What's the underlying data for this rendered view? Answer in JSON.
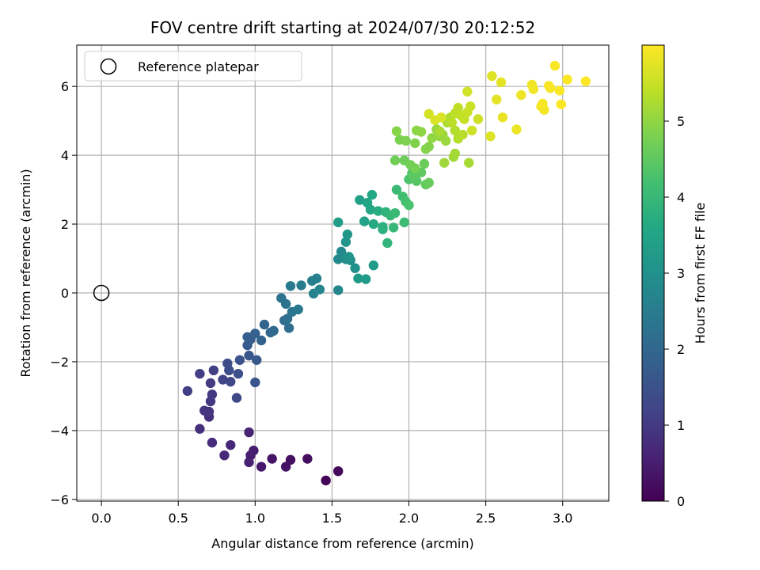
{
  "chart_data": {
    "type": "scatter",
    "title": "FOV centre drift starting at 2024/07/30 20:12:52",
    "xlabel": "Angular distance from reference (arcmin)",
    "ylabel": "Rotation from reference (arcmin)",
    "xlim": [
      -0.16,
      3.3
    ],
    "ylim": [
      -6.05,
      7.2
    ],
    "xticks": [
      0.0,
      0.5,
      1.0,
      1.5,
      2.0,
      2.5,
      3.0
    ],
    "xtick_labels": [
      "0.0",
      "0.5",
      "1.0",
      "1.5",
      "2.0",
      "2.5",
      "3.0"
    ],
    "yticks": [
      -6,
      -4,
      -2,
      0,
      2,
      4,
      6
    ],
    "ytick_labels": [
      "−6",
      "−4",
      "−2",
      "0",
      "2",
      "4",
      "6"
    ],
    "grid": true,
    "colormap": "viridis",
    "colorbar": {
      "label": "Hours from first FF file",
      "range": [
        0,
        6.0
      ],
      "ticks": [
        0,
        1,
        2,
        3,
        4,
        5
      ],
      "tick_labels": [
        "0",
        "1",
        "2",
        "3",
        "4",
        "5"
      ]
    },
    "legend": {
      "position": "top-left",
      "entries": [
        {
          "label": "Reference platepar",
          "marker": "open-circle"
        }
      ]
    },
    "reference_point": {
      "x": 0.0,
      "y": 0.0
    },
    "points": [
      {
        "x": 1.46,
        "y": -5.45,
        "t": 0.05
      },
      {
        "x": 1.54,
        "y": -5.18,
        "t": 0.1
      },
      {
        "x": 1.34,
        "y": -4.82,
        "t": 0.2
      },
      {
        "x": 1.23,
        "y": -4.85,
        "t": 0.25
      },
      {
        "x": 1.2,
        "y": -5.05,
        "t": 0.3
      },
      {
        "x": 1.11,
        "y": -4.82,
        "t": 0.35
      },
      {
        "x": 1.04,
        "y": -5.05,
        "t": 0.4
      },
      {
        "x": 0.99,
        "y": -4.58,
        "t": 0.45
      },
      {
        "x": 0.97,
        "y": -4.72,
        "t": 0.5
      },
      {
        "x": 0.96,
        "y": -4.92,
        "t": 0.55
      },
      {
        "x": 0.96,
        "y": -4.05,
        "t": 0.6
      },
      {
        "x": 0.84,
        "y": -4.42,
        "t": 0.65
      },
      {
        "x": 0.8,
        "y": -4.72,
        "t": 0.7
      },
      {
        "x": 0.72,
        "y": -4.35,
        "t": 0.75
      },
      {
        "x": 0.64,
        "y": -3.95,
        "t": 0.8
      },
      {
        "x": 0.7,
        "y": -3.6,
        "t": 0.85
      },
      {
        "x": 0.7,
        "y": -3.45,
        "t": 0.9
      },
      {
        "x": 0.67,
        "y": -3.42,
        "t": 0.95
      },
      {
        "x": 0.71,
        "y": -3.15,
        "t": 1.0
      },
      {
        "x": 0.72,
        "y": -2.95,
        "t": 1.02
      },
      {
        "x": 0.71,
        "y": -2.62,
        "t": 1.05
      },
      {
        "x": 0.56,
        "y": -2.85,
        "t": 1.08
      },
      {
        "x": 0.64,
        "y": -2.35,
        "t": 1.1
      },
      {
        "x": 0.73,
        "y": -2.25,
        "t": 1.15
      },
      {
        "x": 0.79,
        "y": -2.52,
        "t": 1.2
      },
      {
        "x": 0.84,
        "y": -2.58,
        "t": 1.25
      },
      {
        "x": 0.88,
        "y": -3.05,
        "t": 1.3
      },
      {
        "x": 0.82,
        "y": -2.05,
        "t": 1.35
      },
      {
        "x": 0.83,
        "y": -2.25,
        "t": 1.4
      },
      {
        "x": 0.89,
        "y": -2.35,
        "t": 1.45
      },
      {
        "x": 0.9,
        "y": -1.95,
        "t": 1.5
      },
      {
        "x": 1.0,
        "y": -2.6,
        "t": 1.55
      },
      {
        "x": 0.96,
        "y": -1.82,
        "t": 1.6
      },
      {
        "x": 1.01,
        "y": -1.95,
        "t": 1.65
      },
      {
        "x": 0.95,
        "y": -1.52,
        "t": 1.7
      },
      {
        "x": 0.97,
        "y": -1.35,
        "t": 1.75
      },
      {
        "x": 0.95,
        "y": -1.28,
        "t": 1.8
      },
      {
        "x": 1.0,
        "y": -1.18,
        "t": 1.85
      },
      {
        "x": 1.04,
        "y": -1.38,
        "t": 1.9
      },
      {
        "x": 1.06,
        "y": -0.92,
        "t": 1.95
      },
      {
        "x": 1.1,
        "y": -1.15,
        "t": 2.0
      },
      {
        "x": 1.12,
        "y": -1.1,
        "t": 2.05
      },
      {
        "x": 1.19,
        "y": -0.8,
        "t": 2.1
      },
      {
        "x": 1.22,
        "y": -1.02,
        "t": 2.15
      },
      {
        "x": 1.21,
        "y": -0.75,
        "t": 2.2
      },
      {
        "x": 1.2,
        "y": -0.32,
        "t": 2.25
      },
      {
        "x": 1.17,
        "y": -0.15,
        "t": 2.3
      },
      {
        "x": 1.24,
        "y": -0.55,
        "t": 2.35
      },
      {
        "x": 1.28,
        "y": -0.48,
        "t": 2.4
      },
      {
        "x": 1.23,
        "y": 0.2,
        "t": 2.45
      },
      {
        "x": 1.3,
        "y": 0.22,
        "t": 2.5
      },
      {
        "x": 1.37,
        "y": 0.35,
        "t": 2.55
      },
      {
        "x": 1.4,
        "y": 0.42,
        "t": 2.6
      },
      {
        "x": 1.38,
        "y": -0.02,
        "t": 2.65
      },
      {
        "x": 1.42,
        "y": 0.1,
        "t": 2.7
      },
      {
        "x": 1.54,
        "y": 0.08,
        "t": 2.75
      },
      {
        "x": 1.54,
        "y": 0.98,
        "t": 2.8
      },
      {
        "x": 1.56,
        "y": 1.2,
        "t": 2.85
      },
      {
        "x": 1.59,
        "y": 0.98,
        "t": 2.9
      },
      {
        "x": 1.62,
        "y": 0.95,
        "t": 2.95
      },
      {
        "x": 1.65,
        "y": 0.72,
        "t": 3.0
      },
      {
        "x": 1.61,
        "y": 1.05,
        "t": 3.05
      },
      {
        "x": 1.59,
        "y": 1.48,
        "t": 3.1
      },
      {
        "x": 1.6,
        "y": 1.7,
        "t": 3.15
      },
      {
        "x": 1.67,
        "y": 0.42,
        "t": 3.2
      },
      {
        "x": 1.72,
        "y": 0.4,
        "t": 3.25
      },
      {
        "x": 1.77,
        "y": 0.8,
        "t": 3.3
      },
      {
        "x": 1.54,
        "y": 2.05,
        "t": 3.35
      },
      {
        "x": 1.68,
        "y": 2.7,
        "t": 3.4
      },
      {
        "x": 1.71,
        "y": 2.08,
        "t": 3.45
      },
      {
        "x": 1.73,
        "y": 2.62,
        "t": 3.5
      },
      {
        "x": 1.75,
        "y": 2.42,
        "t": 3.55
      },
      {
        "x": 1.76,
        "y": 2.85,
        "t": 3.6
      },
      {
        "x": 1.77,
        "y": 2.0,
        "t": 3.65
      },
      {
        "x": 1.8,
        "y": 2.38,
        "t": 3.7
      },
      {
        "x": 1.83,
        "y": 1.85,
        "t": 3.75
      },
      {
        "x": 1.83,
        "y": 1.92,
        "t": 3.8
      },
      {
        "x": 1.85,
        "y": 2.35,
        "t": 3.85
      },
      {
        "x": 1.86,
        "y": 1.45,
        "t": 3.9
      },
      {
        "x": 1.88,
        "y": 2.25,
        "t": 3.95
      },
      {
        "x": 1.9,
        "y": 1.9,
        "t": 4.0
      },
      {
        "x": 1.91,
        "y": 2.32,
        "t": 4.02
      },
      {
        "x": 1.92,
        "y": 3.0,
        "t": 4.05
      },
      {
        "x": 1.97,
        "y": 2.05,
        "t": 4.1
      },
      {
        "x": 1.96,
        "y": 2.8,
        "t": 4.15
      },
      {
        "x": 1.98,
        "y": 2.65,
        "t": 4.2
      },
      {
        "x": 2.0,
        "y": 2.55,
        "t": 4.25
      },
      {
        "x": 2.0,
        "y": 3.3,
        "t": 4.3
      },
      {
        "x": 2.02,
        "y": 3.48,
        "t": 4.35
      },
      {
        "x": 2.05,
        "y": 3.25,
        "t": 4.4
      },
      {
        "x": 2.03,
        "y": 3.4,
        "t": 4.45
      },
      {
        "x": 2.08,
        "y": 3.5,
        "t": 4.5
      },
      {
        "x": 2.11,
        "y": 3.15,
        "t": 4.55
      },
      {
        "x": 2.13,
        "y": 3.2,
        "t": 4.6
      },
      {
        "x": 2.1,
        "y": 3.75,
        "t": 4.62
      },
      {
        "x": 1.97,
        "y": 3.85,
        "t": 4.65
      },
      {
        "x": 1.91,
        "y": 3.85,
        "t": 4.7
      },
      {
        "x": 2.01,
        "y": 3.72,
        "t": 4.72
      },
      {
        "x": 2.04,
        "y": 3.62,
        "t": 4.75
      },
      {
        "x": 1.94,
        "y": 4.45,
        "t": 4.8
      },
      {
        "x": 1.98,
        "y": 4.42,
        "t": 4.82
      },
      {
        "x": 2.04,
        "y": 4.35,
        "t": 4.85
      },
      {
        "x": 2.11,
        "y": 4.18,
        "t": 4.88
      },
      {
        "x": 2.13,
        "y": 4.25,
        "t": 4.9
      },
      {
        "x": 1.92,
        "y": 4.7,
        "t": 4.92
      },
      {
        "x": 2.05,
        "y": 4.72,
        "t": 4.95
      },
      {
        "x": 2.08,
        "y": 4.68,
        "t": 4.97
      },
      {
        "x": 2.15,
        "y": 4.5,
        "t": 5.0
      },
      {
        "x": 2.18,
        "y": 4.75,
        "t": 5.02
      },
      {
        "x": 2.2,
        "y": 4.55,
        "t": 5.05
      },
      {
        "x": 2.22,
        "y": 4.6,
        "t": 5.07
      },
      {
        "x": 2.24,
        "y": 4.42,
        "t": 5.1
      },
      {
        "x": 2.23,
        "y": 3.78,
        "t": 5.12
      },
      {
        "x": 2.29,
        "y": 3.95,
        "t": 5.15
      },
      {
        "x": 2.3,
        "y": 4.05,
        "t": 5.17
      },
      {
        "x": 2.39,
        "y": 3.78,
        "t": 5.2
      },
      {
        "x": 2.2,
        "y": 4.7,
        "t": 5.22
      },
      {
        "x": 2.25,
        "y": 4.95,
        "t": 5.25
      },
      {
        "x": 2.27,
        "y": 5.1,
        "t": 5.27
      },
      {
        "x": 2.3,
        "y": 4.72,
        "t": 5.3
      },
      {
        "x": 2.32,
        "y": 4.48,
        "t": 5.32
      },
      {
        "x": 2.35,
        "y": 4.6,
        "t": 5.35
      },
      {
        "x": 2.28,
        "y": 4.95,
        "t": 5.37
      },
      {
        "x": 2.3,
        "y": 5.22,
        "t": 5.4
      },
      {
        "x": 2.32,
        "y": 5.38,
        "t": 5.42
      },
      {
        "x": 2.34,
        "y": 5.15,
        "t": 5.45
      },
      {
        "x": 2.36,
        "y": 5.05,
        "t": 5.47
      },
      {
        "x": 2.38,
        "y": 5.25,
        "t": 5.5
      },
      {
        "x": 2.4,
        "y": 5.42,
        "t": 5.52
      },
      {
        "x": 2.41,
        "y": 4.72,
        "t": 5.55
      },
      {
        "x": 2.45,
        "y": 5.05,
        "t": 5.57
      },
      {
        "x": 2.38,
        "y": 5.85,
        "t": 5.6
      },
      {
        "x": 2.13,
        "y": 5.2,
        "t": 5.62
      },
      {
        "x": 2.17,
        "y": 5.02,
        "t": 5.65
      },
      {
        "x": 2.21,
        "y": 5.1,
        "t": 5.67
      },
      {
        "x": 2.53,
        "y": 4.55,
        "t": 5.7
      },
      {
        "x": 2.54,
        "y": 6.3,
        "t": 5.72
      },
      {
        "x": 2.57,
        "y": 5.62,
        "t": 5.75
      },
      {
        "x": 2.6,
        "y": 6.12,
        "t": 5.77
      },
      {
        "x": 2.61,
        "y": 5.1,
        "t": 5.8
      },
      {
        "x": 2.7,
        "y": 4.75,
        "t": 5.82
      },
      {
        "x": 2.73,
        "y": 5.75,
        "t": 5.85
      },
      {
        "x": 2.8,
        "y": 6.05,
        "t": 5.87
      },
      {
        "x": 2.81,
        "y": 5.92,
        "t": 5.89
      },
      {
        "x": 2.86,
        "y": 5.42,
        "t": 5.9
      },
      {
        "x": 2.88,
        "y": 5.32,
        "t": 5.92
      },
      {
        "x": 2.87,
        "y": 5.5,
        "t": 5.93
      },
      {
        "x": 2.91,
        "y": 6.02,
        "t": 5.94
      },
      {
        "x": 2.92,
        "y": 5.95,
        "t": 5.95
      },
      {
        "x": 2.95,
        "y": 6.6,
        "t": 5.96
      },
      {
        "x": 2.98,
        "y": 5.88,
        "t": 5.97
      },
      {
        "x": 2.99,
        "y": 5.48,
        "t": 5.98
      },
      {
        "x": 3.03,
        "y": 6.2,
        "t": 5.99
      },
      {
        "x": 3.15,
        "y": 6.15,
        "t": 6.0
      }
    ]
  },
  "colors": {
    "axis": "#000000",
    "grid": "#b0b0b0",
    "legend_border": "#cccccc"
  }
}
